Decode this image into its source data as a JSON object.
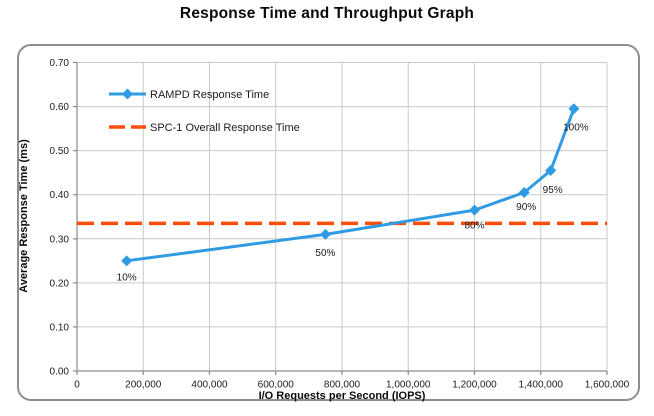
{
  "title": "Response Time and Throughput Graph",
  "colors": {
    "series_blue": "#2f9be3",
    "reference_orange": "#fa4e09",
    "gridline": "#c9c9c9",
    "axis": "#8c8c8c",
    "frame_border": "#8e8e8e",
    "text": "#1c1c1c"
  },
  "chart_data": {
    "type": "line",
    "title": "Response Time and Throughput Graph",
    "xlabel": "I/O Requests per Second (IOPS)",
    "ylabel": "Average Response Time (ms)",
    "xlim": [
      0,
      1600000
    ],
    "ylim": [
      0,
      0.7
    ],
    "grid": true,
    "legend_position": "inside-top-left",
    "x_ticks": [
      {
        "v": 0,
        "label": "0"
      },
      {
        "v": 200000,
        "label": "200,000"
      },
      {
        "v": 400000,
        "label": "400,000"
      },
      {
        "v": 600000,
        "label": "600,000"
      },
      {
        "v": 800000,
        "label": "800,000"
      },
      {
        "v": 1000000,
        "label": "1,000,000"
      },
      {
        "v": 1200000,
        "label": "1,200,000"
      },
      {
        "v": 1400000,
        "label": "1,400,000"
      },
      {
        "v": 1600000,
        "label": "1,600,000"
      }
    ],
    "y_ticks": [
      {
        "v": 0.0,
        "label": "0.00"
      },
      {
        "v": 0.1,
        "label": "0.10"
      },
      {
        "v": 0.2,
        "label": "0.20"
      },
      {
        "v": 0.3,
        "label": "0.30"
      },
      {
        "v": 0.4,
        "label": "0.40"
      },
      {
        "v": 0.5,
        "label": "0.50"
      },
      {
        "v": 0.6,
        "label": "0.60"
      },
      {
        "v": 0.7,
        "label": "0.70"
      }
    ],
    "series": [
      {
        "name": "RAMPD Response Time",
        "marker": "diamond",
        "color_key": "series_blue",
        "points": [
          {
            "label": "10%",
            "x": 150000,
            "y": 0.25,
            "label_dx": 0,
            "label_dy": 16
          },
          {
            "label": "50%",
            "x": 750000,
            "y": 0.31,
            "label_dx": 0,
            "label_dy": 18
          },
          {
            "label": "80%",
            "x": 1200000,
            "y": 0.365,
            "label_dx": 0,
            "label_dy": 15
          },
          {
            "label": "90%",
            "x": 1350000,
            "y": 0.405,
            "label_dx": 2,
            "label_dy": 14
          },
          {
            "label": "95%",
            "x": 1430000,
            "y": 0.455,
            "label_dx": 2,
            "label_dy": 19
          },
          {
            "label": "100%",
            "x": 1500000,
            "y": 0.595,
            "label_dx": 2,
            "label_dy": 18
          }
        ]
      }
    ],
    "reference_line": {
      "name": "SPC-1 Overall Response Time",
      "value": 0.335,
      "style": "dashed",
      "color_key": "reference_orange"
    }
  }
}
